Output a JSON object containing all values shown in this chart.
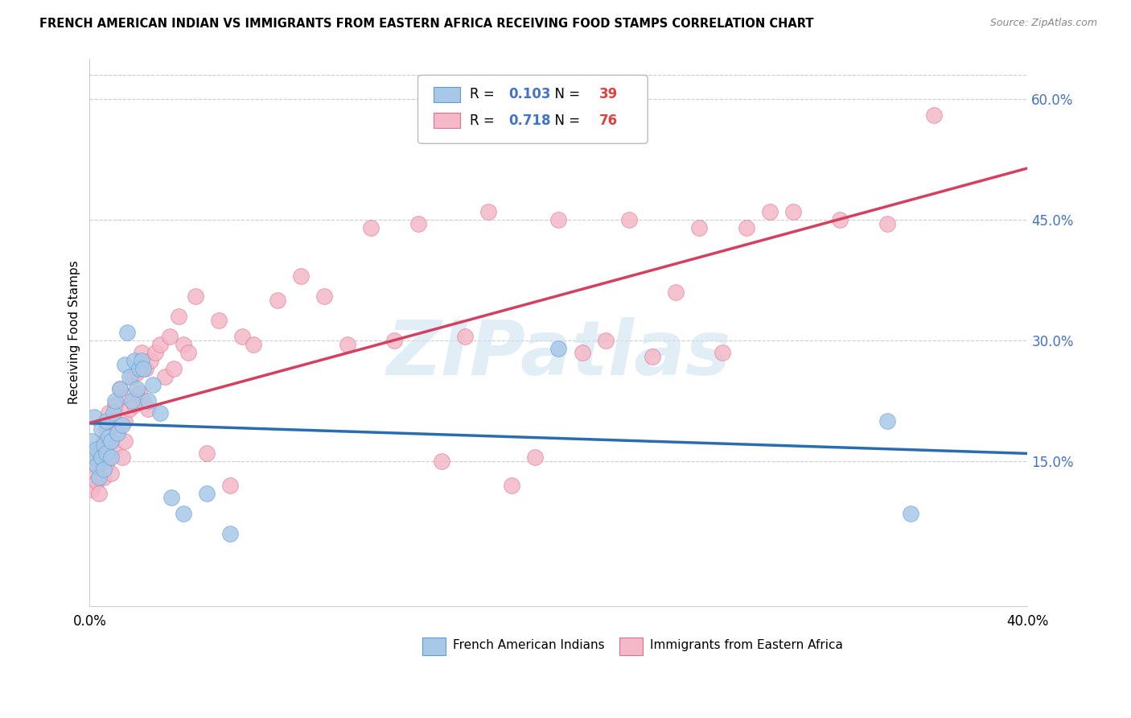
{
  "title": "FRENCH AMERICAN INDIAN VS IMMIGRANTS FROM EASTERN AFRICA RECEIVING FOOD STAMPS CORRELATION CHART",
  "source": "Source: ZipAtlas.com",
  "ylabel": "Receiving Food Stamps",
  "y_ticks_right": [
    0.15,
    0.3,
    0.45,
    0.6
  ],
  "y_tick_labels_right": [
    "15.0%",
    "30.0%",
    "45.0%",
    "60.0%"
  ],
  "watermark": "ZIPatlas",
  "series1_label": "French American Indians",
  "series1_R": "0.103",
  "series1_N": "39",
  "series1_color": "#a8c8e8",
  "series1_edge_color": "#5a9fd4",
  "series1_line_color": "#2b6cb0",
  "series2_label": "Immigrants from Eastern Africa",
  "series2_R": "0.718",
  "series2_N": "76",
  "series2_color": "#f4b8c8",
  "series2_edge_color": "#e07090",
  "series2_line_color": "#d44060",
  "legend_R_color": "#4472c4",
  "legend_N_color": "#e04040",
  "background_color": "#ffffff",
  "grid_color": "#cccccc",
  "xlim": [
    0.0,
    0.4
  ],
  "ylim": [
    -0.03,
    0.65
  ],
  "series1_x": [
    0.001,
    0.002,
    0.002,
    0.003,
    0.003,
    0.004,
    0.005,
    0.005,
    0.006,
    0.006,
    0.007,
    0.007,
    0.008,
    0.009,
    0.009,
    0.01,
    0.011,
    0.012,
    0.013,
    0.014,
    0.015,
    0.016,
    0.017,
    0.018,
    0.019,
    0.02,
    0.021,
    0.022,
    0.023,
    0.025,
    0.027,
    0.03,
    0.035,
    0.04,
    0.05,
    0.06,
    0.2,
    0.34,
    0.35
  ],
  "series1_y": [
    0.175,
    0.155,
    0.205,
    0.145,
    0.165,
    0.13,
    0.19,
    0.155,
    0.14,
    0.17,
    0.16,
    0.2,
    0.18,
    0.155,
    0.175,
    0.21,
    0.225,
    0.185,
    0.24,
    0.195,
    0.27,
    0.31,
    0.255,
    0.225,
    0.275,
    0.24,
    0.265,
    0.275,
    0.265,
    0.225,
    0.245,
    0.21,
    0.105,
    0.085,
    0.11,
    0.06,
    0.29,
    0.2,
    0.085
  ],
  "series2_x": [
    0.001,
    0.002,
    0.002,
    0.003,
    0.003,
    0.004,
    0.004,
    0.005,
    0.005,
    0.006,
    0.006,
    0.007,
    0.007,
    0.008,
    0.008,
    0.009,
    0.009,
    0.01,
    0.01,
    0.011,
    0.012,
    0.013,
    0.014,
    0.015,
    0.015,
    0.016,
    0.017,
    0.018,
    0.019,
    0.02,
    0.021,
    0.022,
    0.023,
    0.024,
    0.025,
    0.026,
    0.028,
    0.03,
    0.032,
    0.034,
    0.036,
    0.038,
    0.04,
    0.042,
    0.045,
    0.05,
    0.055,
    0.06,
    0.065,
    0.07,
    0.08,
    0.09,
    0.1,
    0.11,
    0.12,
    0.13,
    0.14,
    0.15,
    0.16,
    0.17,
    0.18,
    0.19,
    0.2,
    0.21,
    0.22,
    0.23,
    0.24,
    0.25,
    0.26,
    0.27,
    0.28,
    0.29,
    0.3,
    0.32,
    0.34,
    0.36
  ],
  "series2_y": [
    0.115,
    0.13,
    0.155,
    0.125,
    0.145,
    0.11,
    0.165,
    0.14,
    0.16,
    0.13,
    0.175,
    0.145,
    0.19,
    0.155,
    0.21,
    0.135,
    0.175,
    0.165,
    0.2,
    0.22,
    0.185,
    0.24,
    0.155,
    0.175,
    0.2,
    0.23,
    0.215,
    0.255,
    0.22,
    0.26,
    0.235,
    0.285,
    0.225,
    0.265,
    0.215,
    0.275,
    0.285,
    0.295,
    0.255,
    0.305,
    0.265,
    0.33,
    0.295,
    0.285,
    0.355,
    0.16,
    0.325,
    0.12,
    0.305,
    0.295,
    0.35,
    0.38,
    0.355,
    0.295,
    0.44,
    0.3,
    0.445,
    0.15,
    0.305,
    0.46,
    0.12,
    0.155,
    0.45,
    0.285,
    0.3,
    0.45,
    0.28,
    0.36,
    0.44,
    0.285,
    0.44,
    0.46,
    0.46,
    0.45,
    0.445,
    0.58
  ]
}
